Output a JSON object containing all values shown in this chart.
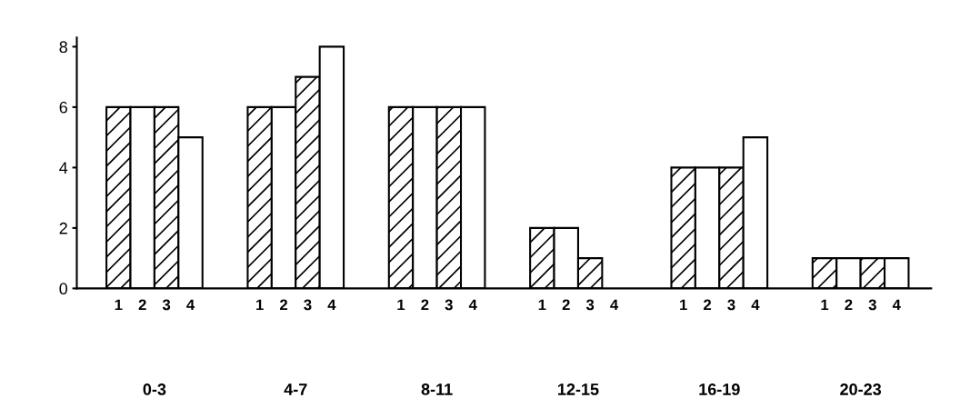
{
  "chart_data": {
    "type": "bar",
    "categories": [
      "0-3",
      "4-7",
      "8-11",
      "12-15",
      "16-19",
      "20-23"
    ],
    "series": [
      {
        "name": "1",
        "color": "#000000",
        "values": [
          6,
          6,
          6,
          2,
          4,
          1
        ]
      },
      {
        "name": "2",
        "color": "#ffffff",
        "values": [
          6,
          6,
          6,
          2,
          4,
          1
        ]
      },
      {
        "name": "3",
        "color": "#000000",
        "values": [
          6,
          7,
          6,
          1,
          4,
          1
        ]
      },
      {
        "name": "4",
        "color": "#ffffff",
        "values": [
          5,
          8,
          6,
          null,
          5,
          1
        ]
      }
    ],
    "ylim": [
      0,
      8.3
    ],
    "yticks": [
      0,
      2,
      4,
      6,
      8
    ],
    "grid": false,
    "legend": false
  }
}
